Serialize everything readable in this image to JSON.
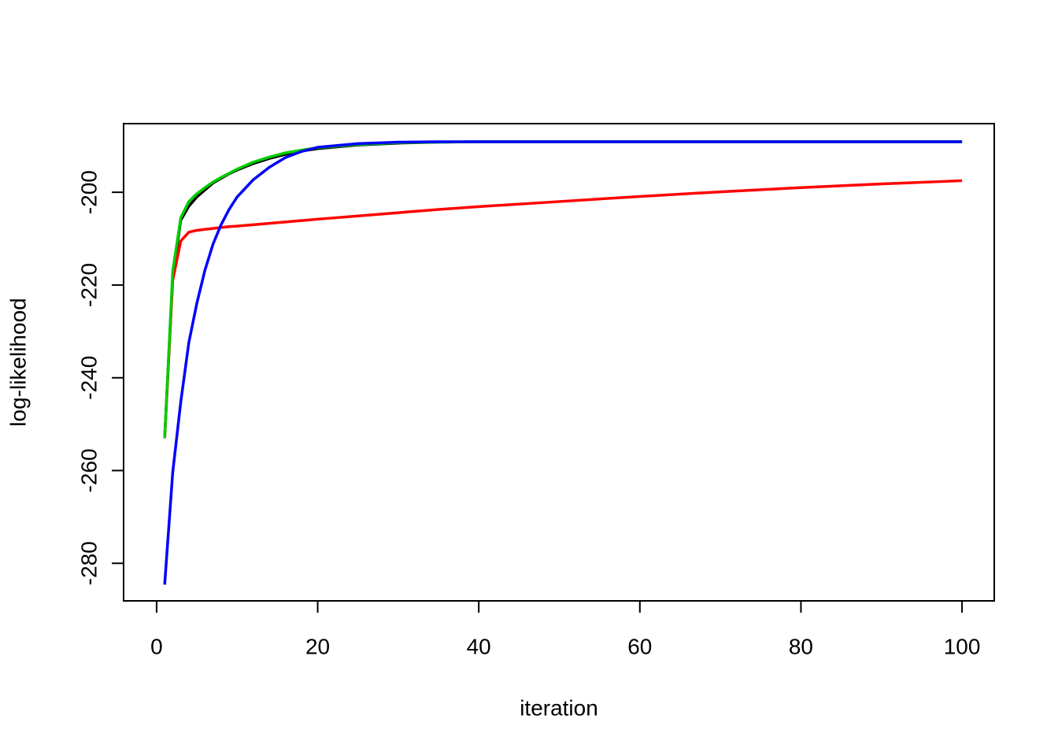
{
  "chart_data": {
    "type": "line",
    "x_label": "iteration",
    "y_label": "log-likelihood",
    "x": [
      1,
      2,
      3,
      4,
      5,
      6,
      7,
      8,
      9,
      10,
      12,
      14,
      16,
      18,
      20,
      25,
      30,
      35,
      40,
      50,
      60,
      70,
      80,
      90,
      100
    ],
    "series": [
      {
        "color": "#000000",
        "values": [
          -253,
          -218,
          -206,
          -203,
          -201,
          -199.5,
          -198,
          -197,
          -196,
          -195.2,
          -193.8,
          -192.7,
          -191.8,
          -191.1,
          -190.6,
          -189.8,
          -189.4,
          -189.2,
          -189.1,
          -189.1,
          -189.1,
          -189.1,
          -189.1,
          -189.1,
          -189.1
        ]
      },
      {
        "color": "#ff0000",
        "values": [
          -253,
          -219,
          -210.5,
          -208.6,
          -208.2,
          -208,
          -207.8,
          -207.6,
          -207.4,
          -207.3,
          -207,
          -206.7,
          -206.4,
          -206.1,
          -205.8,
          -205.1,
          -204.4,
          -203.7,
          -203.1,
          -202,
          -200.9,
          -199.9,
          -199,
          -198.2,
          -197.5
        ]
      },
      {
        "color": "#00cd00",
        "values": [
          -253,
          -217,
          -205.5,
          -202,
          -200.3,
          -199,
          -197.8,
          -196.8,
          -195.9,
          -195,
          -193.5,
          -192.4,
          -191.5,
          -190.9,
          -190.4,
          -189.7,
          -189.3,
          -189.2,
          -189.1,
          -189.1,
          -189.1,
          -189.1,
          -189.1,
          -189.1,
          -189.1
        ]
      },
      {
        "color": "#0000ff",
        "values": [
          -284.6,
          -260.4,
          -245.2,
          -232.4,
          -223.9,
          -216.8,
          -211.2,
          -207,
          -203.7,
          -201,
          -197.3,
          -194.6,
          -192.5,
          -191.2,
          -190.3,
          -189.5,
          -189.2,
          -189.1,
          -189.1,
          -189.1,
          -189.1,
          -189.1,
          -189.1,
          -189.1,
          -189.1
        ]
      }
    ],
    "xlim": [
      -4.1,
      104.0
    ],
    "ylim": [
      -288.1,
      -185.2
    ],
    "xticks": [
      0,
      20,
      40,
      60,
      80,
      100
    ],
    "yticks": [
      -280,
      -260,
      -240,
      -220,
      -200
    ]
  }
}
